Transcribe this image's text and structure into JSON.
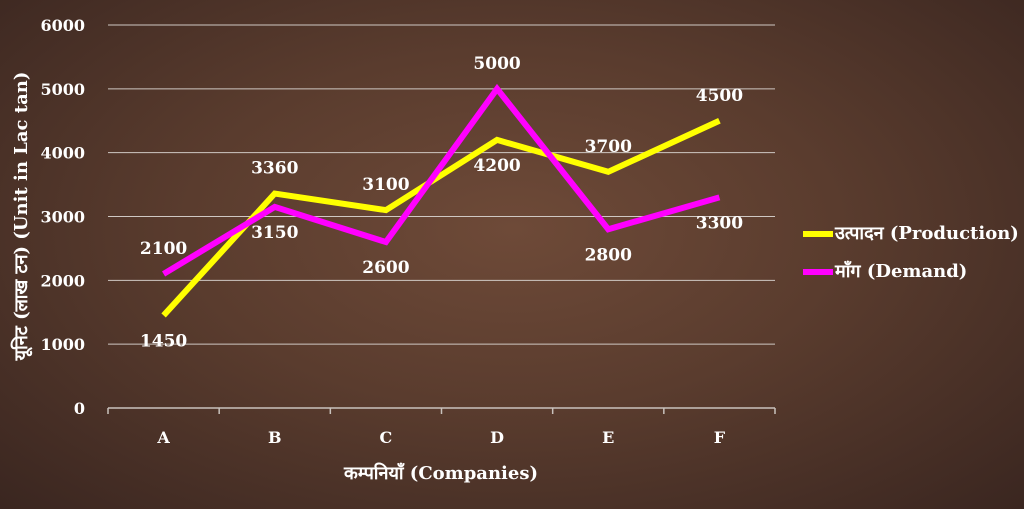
{
  "chart_data": {
    "type": "line",
    "categories": [
      "A",
      "B",
      "C",
      "D",
      "E",
      "F"
    ],
    "series": [
      {
        "name": "उत्पादन (Production)",
        "values": [
          1450,
          3360,
          3100,
          4200,
          3700,
          4500
        ],
        "color": "#ffff00"
      },
      {
        "name": "माँग (Demand)",
        "values": [
          2100,
          3150,
          2600,
          5000,
          2800,
          3300
        ],
        "color": "#ff00ff"
      }
    ],
    "title": "",
    "xlabel": "कम्पनियाँ (Companies)",
    "ylabel": "यूनिट (लाख टन) (Unit in Lac tan)",
    "ylim": [
      0,
      6000
    ],
    "yticks": [
      0,
      1000,
      2000,
      3000,
      4000,
      5000,
      6000
    ],
    "grid": true,
    "legend_position": "right"
  }
}
